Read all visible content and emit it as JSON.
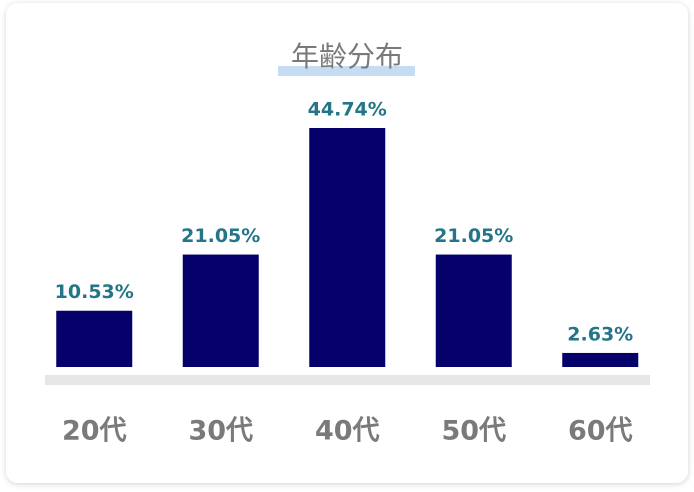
{
  "chart_data": {
    "type": "bar",
    "title": "年齢分布",
    "categories": [
      "20代",
      "30代",
      "40代",
      "50代",
      "60代"
    ],
    "values": [
      10.53,
      21.05,
      44.74,
      21.05,
      2.63
    ],
    "value_labels": [
      "10.53%",
      "21.05%",
      "44.74%",
      "21.05%",
      "2.63%"
    ],
    "color": "#06006b"
  }
}
